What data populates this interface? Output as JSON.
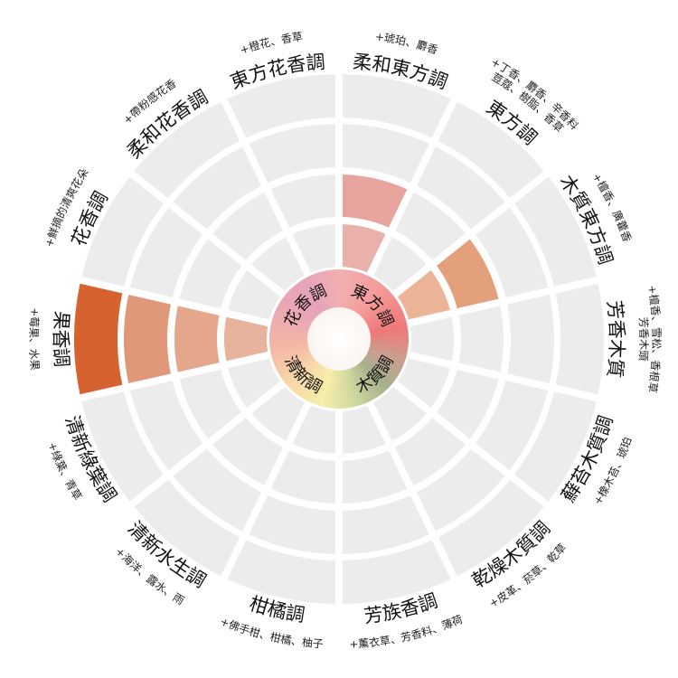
{
  "segments": [
    {
      "label": "柔和東方調",
      "desc": [
        "+琥珀、麝香"
      ],
      "filled": 2,
      "colors": [
        "#eab0aa",
        "#e8a49f"
      ]
    },
    {
      "label": "東方調",
      "desc": [
        "+丁香、麝香、辛香料",
        "荳蔻、樹脂、香草"
      ],
      "filled": 0,
      "colors": []
    },
    {
      "label": "木質東方調",
      "desc": [
        "+檀香、廣藿香"
      ],
      "filled": 2,
      "colors": [
        "#ebb497",
        "#e3a07a"
      ]
    },
    {
      "label": "芳香木質",
      "desc": [
        "+檀香、雪松、香根草",
        "芳香木頭"
      ],
      "filled": 0,
      "colors": []
    },
    {
      "label": "蘚苔木質調",
      "desc": [
        "+橡木苔、琥珀"
      ],
      "filled": 0,
      "colors": []
    },
    {
      "label": "乾燥木質調",
      "desc": [
        "+皮革、菸草、乾草"
      ],
      "filled": 0,
      "colors": []
    },
    {
      "label": "芳族香調",
      "desc": [
        "+薰衣草、芳香料、薄荷"
      ],
      "filled": 0,
      "colors": []
    },
    {
      "label": "柑橘調",
      "desc": [
        "+佛手柑、柑橘、柚子"
      ],
      "filled": 0,
      "colors": []
    },
    {
      "label": "清新水生調",
      "desc": [
        "+海洋、露水、雨"
      ],
      "filled": 0,
      "colors": []
    },
    {
      "label": "清新綠葉調",
      "desc": [
        "+綠葉、青草"
      ],
      "filled": 0,
      "colors": []
    },
    {
      "label": "果香調",
      "desc": [
        "+莓果、水果"
      ],
      "filled": 4,
      "colors": [
        "#e7b39c",
        "#e4a78b",
        "#e0987a",
        "#d5622f"
      ]
    },
    {
      "label": "花香調",
      "desc": [
        "+鮮摘的清爽花朵"
      ],
      "filled": 0,
      "colors": []
    },
    {
      "label": "柔和花香調",
      "desc": [
        "+帶粉感花香"
      ],
      "filled": 0,
      "colors": []
    },
    {
      "label": "東方花香調",
      "desc": [
        "+橙花、香草"
      ],
      "filled": 0,
      "colors": []
    }
  ],
  "hub": [
    {
      "label": "東方調",
      "color": "#f07878"
    },
    {
      "label": "木質調",
      "color": "#a4b08c"
    },
    {
      "label": "清新調",
      "color": "#f7eeaa"
    },
    {
      "label": "花香調",
      "color": "#e6a3bc"
    }
  ],
  "empty_color": "#ececec"
}
